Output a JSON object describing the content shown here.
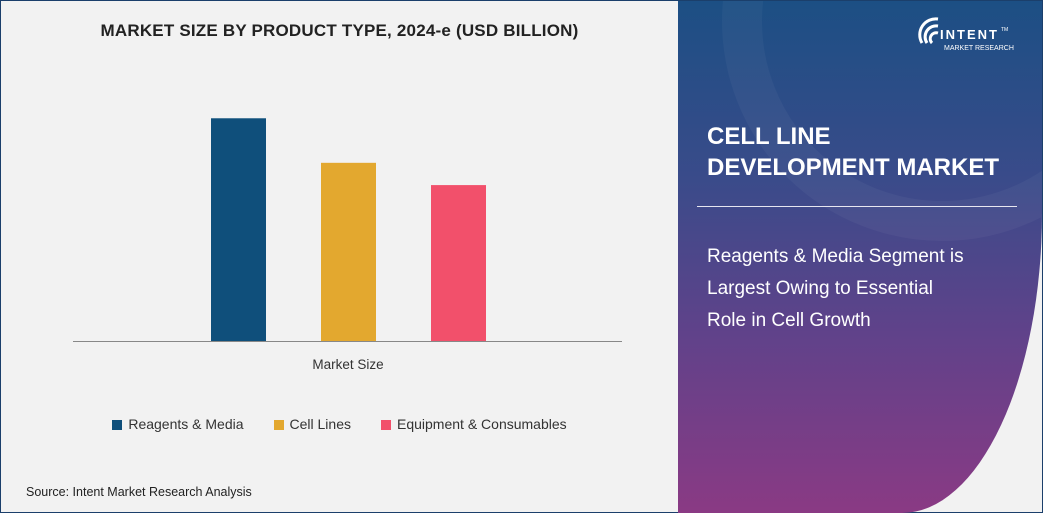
{
  "chart_data": {
    "type": "bar",
    "title": "MARKET SIZE BY PRODUCT TYPE, 2024-e (USD BILLION)",
    "xlabel": "Market Size",
    "ylabel": "",
    "categories": [
      "Market Size"
    ],
    "series": [
      {
        "name": "Reagents & Media",
        "values": [
          1.0
        ],
        "color": "#0f4f7b"
      },
      {
        "name": "Cell Lines",
        "values": [
          0.8
        ],
        "color": "#e3a82f"
      },
      {
        "name": "Equipment & Consumables",
        "values": [
          0.7
        ],
        "color": "#f2506b"
      }
    ],
    "ylim": [
      0,
      1.1
    ],
    "value_note_visible": false,
    "grid": false,
    "legend_position": "bottom"
  },
  "source": "Source: Intent Market Research Analysis",
  "panel": {
    "logo_text": "INTENT",
    "logo_subtext": "MARKET RESEARCH",
    "logo_tm": "TM",
    "title_line1": "CELL LINE",
    "title_line2": "DEVELOPMENT MARKET",
    "subtitle_line1": "Reagents & Media Segment is",
    "subtitle_line2": "Largest Owing to Essential",
    "subtitle_line3": "Role in Cell Growth"
  }
}
